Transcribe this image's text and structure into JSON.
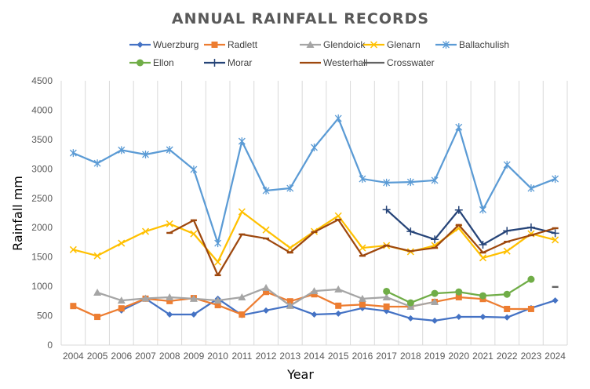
{
  "chart_data": {
    "type": "line",
    "title": "ANNUAL RAINFALL RECORDS",
    "xlabel": "Year",
    "ylabel": "Rainfall mm",
    "ylim": [
      0,
      4500
    ],
    "yticks": [
      "0",
      "500",
      "1000",
      "1500",
      "2000",
      "2500",
      "3000",
      "3500",
      "4000",
      "4500"
    ],
    "ytick_values": [
      0,
      500,
      1000,
      1500,
      2000,
      2500,
      3000,
      3500,
      4000,
      4500
    ],
    "grid": "vertical",
    "legend_position": "top",
    "categories": [
      "2004",
      "2005",
      "2006",
      "2007",
      "2008",
      "2009",
      "2010",
      "2011",
      "2012",
      "2013",
      "2014",
      "2015",
      "2016",
      "2017",
      "2018",
      "2019",
      "2020",
      "2021",
      "2022",
      "2023",
      "2024"
    ],
    "series": [
      {
        "name": "Wuerzburg",
        "color": "#4472C4",
        "marker": "diamond",
        "values": [
          null,
          null,
          590,
          790,
          520,
          520,
          790,
          510,
          590,
          670,
          520,
          535,
          630,
          580,
          455,
          415,
          480,
          480,
          470,
          630,
          760
        ]
      },
      {
        "name": "Radlett",
        "color": "#ED7D31",
        "marker": "square",
        "values": [
          665,
          480,
          625,
          790,
          750,
          800,
          680,
          520,
          905,
          745,
          865,
          670,
          690,
          655,
          655,
          735,
          815,
          785,
          615,
          615,
          null
        ]
      },
      {
        "name": "Glendoick",
        "color": "#A5A5A5",
        "marker": "triangle",
        "values": [
          null,
          895,
          760,
          795,
          815,
          790,
          760,
          815,
          975,
          670,
          920,
          950,
          790,
          815,
          655,
          735,
          null,
          null,
          null,
          null,
          null
        ]
      },
      {
        "name": "Glenarn",
        "color": "#FFC000",
        "marker": "x",
        "values": [
          1625,
          1520,
          1735,
          1935,
          2065,
          1895,
          1415,
          2270,
          1960,
          1655,
          1935,
          2200,
          1655,
          1695,
          1590,
          1695,
          1990,
          1485,
          1600,
          1895,
          1790
        ]
      },
      {
        "name": "Ballachulish",
        "color": "#5B9BD5",
        "marker": "star",
        "values": [
          3270,
          3095,
          3320,
          3245,
          3325,
          2990,
          1735,
          3470,
          2630,
          2670,
          3365,
          3860,
          2830,
          2765,
          2775,
          2805,
          3710,
          2305,
          3070,
          2670,
          2830
        ]
      },
      {
        "name": "Ellon",
        "color": "#70AD47",
        "marker": "circle",
        "values": [
          null,
          null,
          null,
          null,
          null,
          null,
          null,
          null,
          null,
          null,
          null,
          null,
          null,
          915,
          720,
          880,
          905,
          840,
          865,
          1120,
          null
        ]
      },
      {
        "name": "Morar",
        "color": "#264478",
        "marker": "plus",
        "values": [
          null,
          null,
          null,
          null,
          null,
          null,
          null,
          null,
          null,
          null,
          null,
          null,
          null,
          2305,
          1935,
          1800,
          2300,
          1710,
          1945,
          2005,
          1905
        ]
      },
      {
        "name": "Westerhall",
        "color": "#9E480E",
        "marker": "dash",
        "values": [
          null,
          null,
          null,
          null,
          1910,
          2125,
          1190,
          1885,
          1815,
          1575,
          1925,
          2135,
          1520,
          1695,
          1600,
          1655,
          2045,
          1575,
          1760,
          1870,
          1990
        ]
      },
      {
        "name": "Crosswater",
        "color": "#636363",
        "marker": "dash",
        "values": [
          null,
          null,
          null,
          null,
          null,
          null,
          null,
          null,
          null,
          null,
          null,
          null,
          null,
          null,
          null,
          null,
          null,
          null,
          null,
          null,
          990
        ]
      }
    ]
  }
}
